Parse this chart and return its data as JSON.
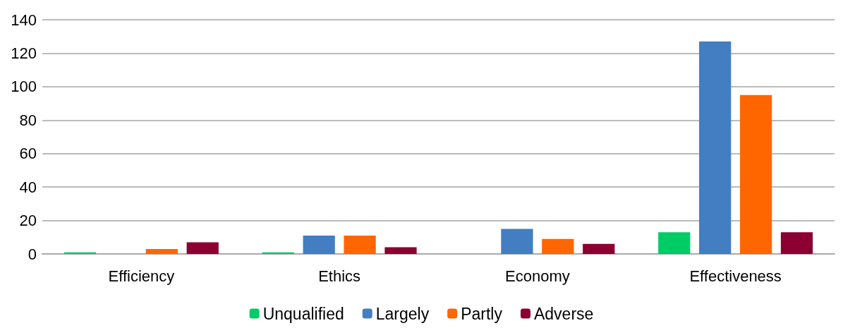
{
  "chart_data": {
    "type": "bar",
    "categories": [
      "Efficiency",
      "Ethics",
      "Economy",
      "Effectiveness"
    ],
    "series": [
      {
        "name": "Unqualified",
        "color": "#00cc66",
        "values": [
          1,
          1,
          0,
          13
        ]
      },
      {
        "name": "Largely",
        "color": "#437ec2",
        "values": [
          0,
          11,
          15,
          127
        ]
      },
      {
        "name": "Partly",
        "color": "#ff6600",
        "values": [
          3,
          11,
          9,
          95
        ]
      },
      {
        "name": "Adverse",
        "color": "#8b0030",
        "values": [
          7,
          4,
          6,
          13
        ]
      }
    ],
    "ylim": [
      0,
      140
    ],
    "yticks": [
      0,
      20,
      40,
      60,
      80,
      100,
      120,
      140
    ],
    "grid": "y",
    "legend": "bottom"
  }
}
